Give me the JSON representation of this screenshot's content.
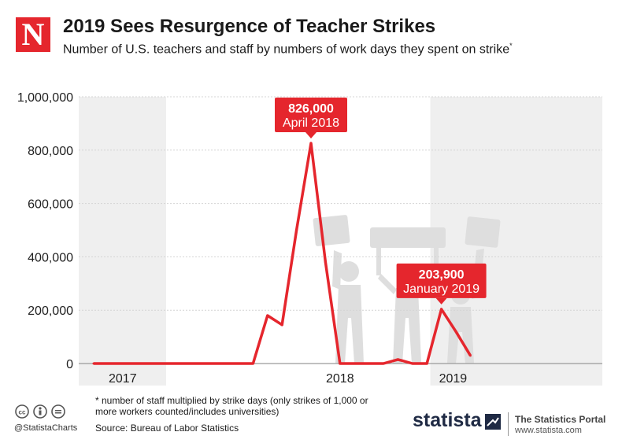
{
  "brand": {
    "logo_letter": "N",
    "accent_color": "#e5262d"
  },
  "header": {
    "title": "2019 Sees Resurgence of Teacher Strikes",
    "subtitle": "Number of U.S. teachers and staff by numbers of work days they spent on strike",
    "subtitle_mark": "*"
  },
  "chart_data": {
    "type": "line",
    "title": "2019 Sees Resurgence of Teacher Strikes",
    "subtitle": "Number of U.S. teachers and staff by numbers of work days they spent on strike*",
    "xlabel": "",
    "ylabel": "",
    "ylim": [
      0,
      1000000
    ],
    "yticks": [
      0,
      200000,
      400000,
      600000,
      800000,
      1000000
    ],
    "ytick_labels": [
      "0",
      "200,000",
      "400,000",
      "600,000",
      "800,000",
      "1,000,000"
    ],
    "grid": true,
    "year_labels": [
      "2017",
      "2018",
      "2019"
    ],
    "x": [
      "Jan 2017",
      "Feb 2017",
      "Mar 2017",
      "Apr 2017",
      "May 2017",
      "Jun 2017",
      "Jul 2017",
      "Aug 2017",
      "Sep 2017",
      "Oct 2017",
      "Nov 2017",
      "Dec 2017",
      "Jan 2018",
      "Feb 2018",
      "Mar 2018",
      "Apr 2018",
      "May 2018",
      "Jun 2018",
      "Jul 2018",
      "Aug 2018",
      "Sep 2018",
      "Oct 2018",
      "Nov 2018",
      "Dec 2018",
      "Jan 2019",
      "Feb 2019",
      "Mar 2019"
    ],
    "series": [
      {
        "color": "#e5262d",
        "values": [
          0,
          0,
          0,
          0,
          0,
          0,
          0,
          0,
          0,
          0,
          0,
          0,
          180000,
          145000,
          500000,
          826000,
          380000,
          0,
          0,
          0,
          0,
          15000,
          0,
          0,
          203900,
          120000,
          30000
        ]
      }
    ],
    "annotations": [
      {
        "value": "826,000",
        "label": "April 2018",
        "index": 15
      },
      {
        "value": "203,900",
        "label": "January 2019",
        "index": 24
      }
    ]
  },
  "footer": {
    "footnote": "* number of staff multiplied by strike days (only strikes of 1,000 or more workers counted/includes universities)",
    "source": "Source: Bureau of Labor Statistics",
    "cc_handle": "@StatistaCharts",
    "statista": "statista",
    "portal_title": "The Statistics Portal",
    "portal_url": "www.statista.com"
  }
}
